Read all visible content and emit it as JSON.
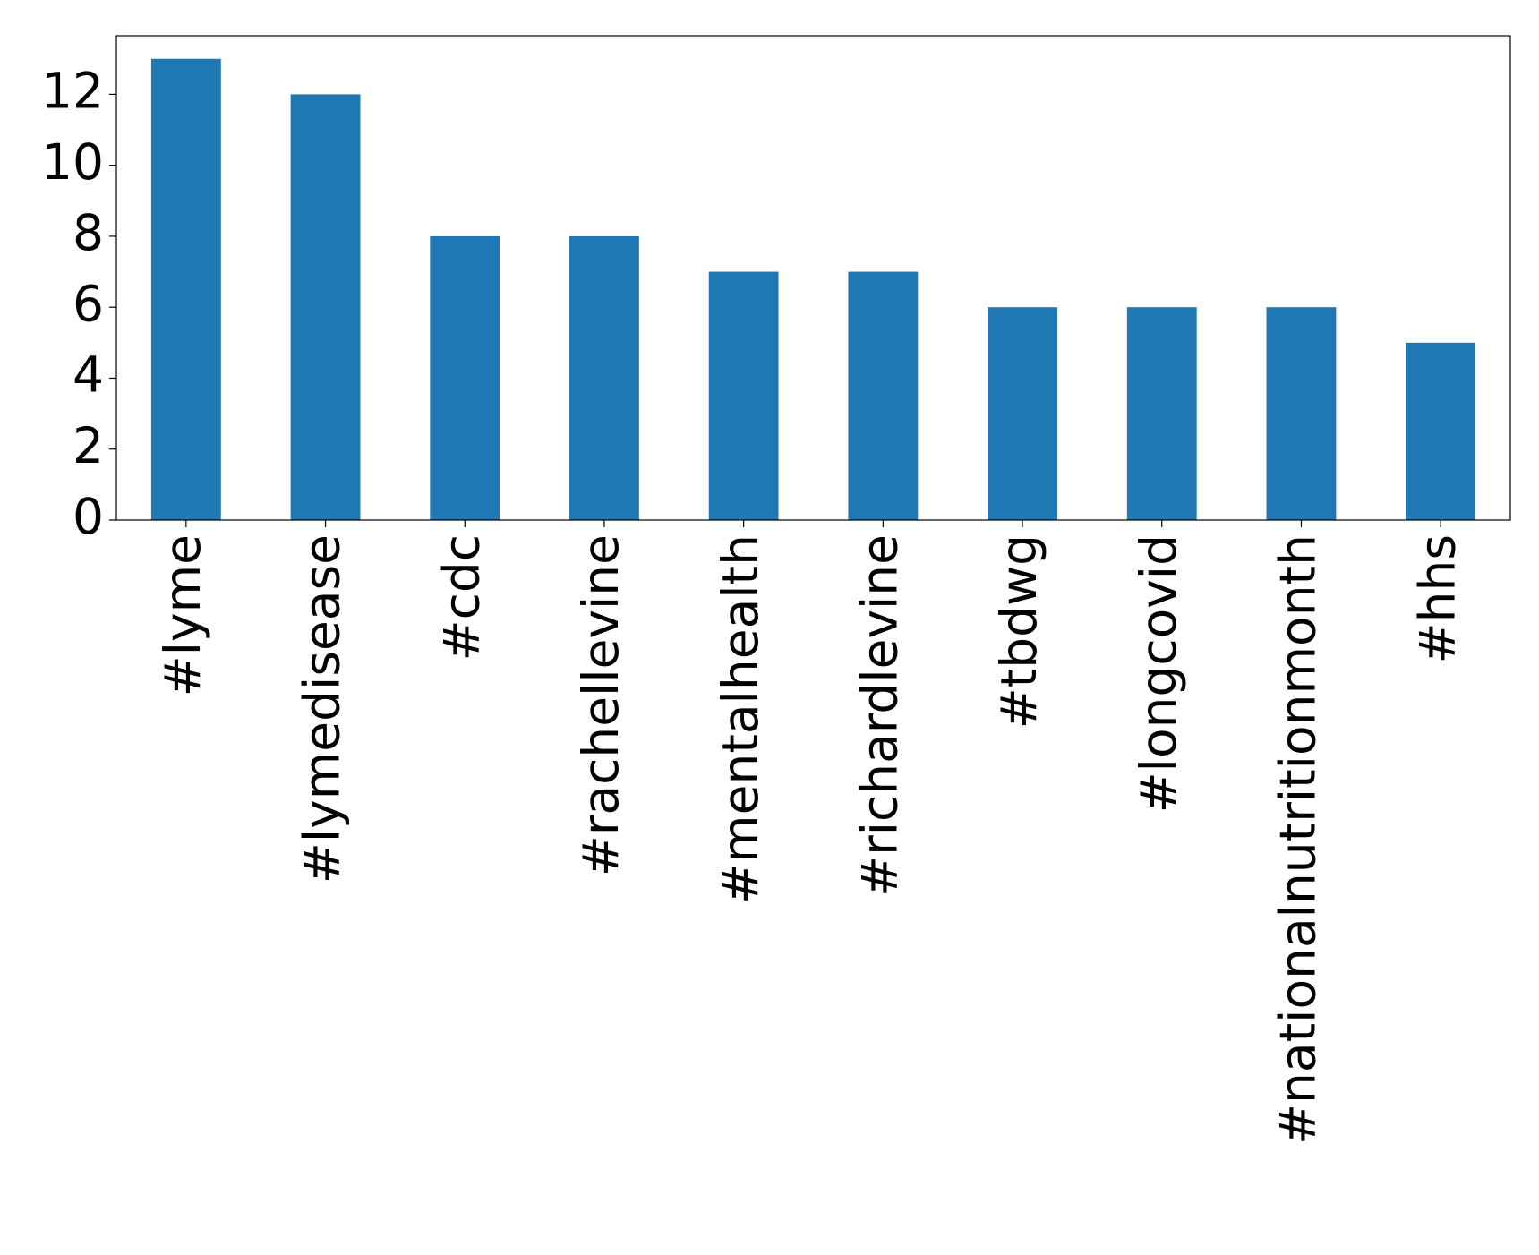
{
  "chart_data": {
    "type": "bar",
    "categories": [
      "#lyme",
      "#lymedisease",
      "#cdc",
      "#rachellevine",
      "#mentalhealth",
      "#richardlevine",
      "#tbdwg",
      "#longcovid",
      "#nationalnutritionmonth",
      "#hhs"
    ],
    "values": [
      13,
      12,
      8,
      8,
      7,
      7,
      6,
      6,
      6,
      5
    ],
    "color": "#1f77b4",
    "ylim": [
      0,
      13.65
    ],
    "yticks": [
      0,
      2,
      4,
      6,
      8,
      10,
      12
    ],
    "grid": false
  }
}
